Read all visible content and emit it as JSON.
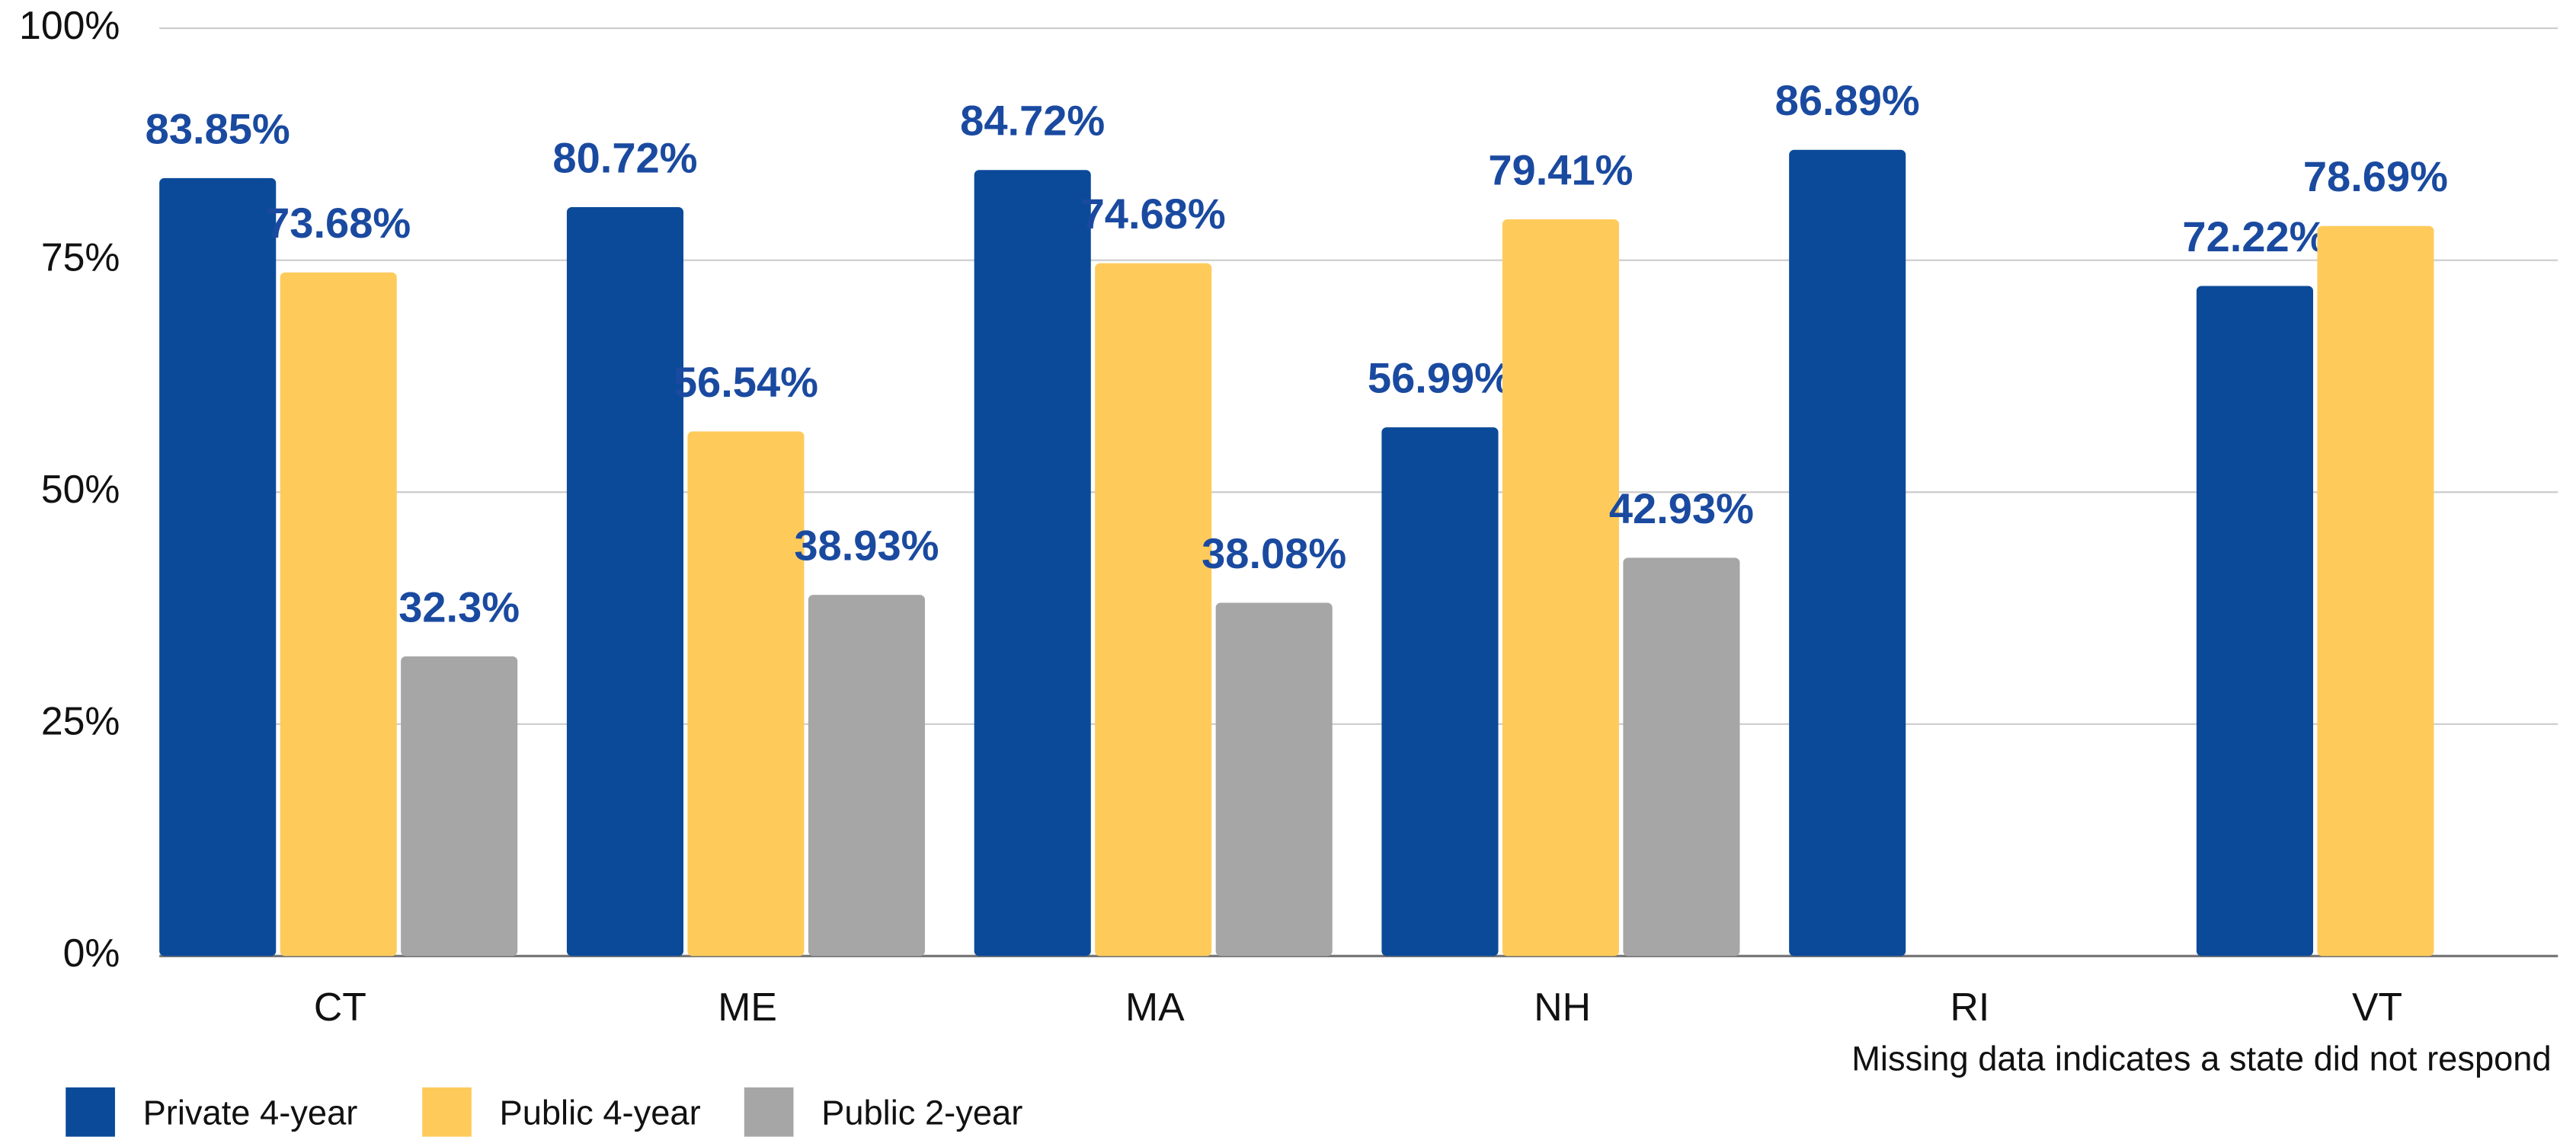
{
  "chart_data": {
    "type": "bar",
    "categories": [
      "CT",
      "ME",
      "MA",
      "NH",
      "RI",
      "VT"
    ],
    "series": [
      {
        "name": "Private 4-year",
        "color": "#0b4a99",
        "values": [
          83.85,
          80.72,
          84.72,
          56.99,
          86.89,
          72.22
        ],
        "value_labels": [
          "83.85%",
          "80.72%",
          "84.72%",
          "56.99%",
          "86.89%",
          "72.22%"
        ]
      },
      {
        "name": "Public 4-year",
        "color": "#fecb5b",
        "values": [
          73.68,
          56.54,
          74.68,
          79.41,
          null,
          78.69
        ],
        "value_labels": [
          "73.68%",
          "56.54%",
          "74.68%",
          "79.41%",
          null,
          "78.69%"
        ]
      },
      {
        "name": "Public 2-year",
        "color": "#a6a6a6",
        "values": [
          32.3,
          38.93,
          38.08,
          42.93,
          null,
          null
        ],
        "value_labels": [
          "32.3%",
          "38.93%",
          "38.08%",
          "42.93%",
          null,
          null
        ]
      }
    ],
    "ylim": [
      0,
      100
    ],
    "yticks": [
      {
        "value": 0,
        "label": "0%"
      },
      {
        "value": 25,
        "label": "25%"
      },
      {
        "value": 50,
        "label": "50%"
      },
      {
        "value": 75,
        "label": "75%"
      },
      {
        "value": 100,
        "label": "100%"
      }
    ],
    "grid": true,
    "legend": "bottom-left",
    "note": "Missing data indicates a state did not respond"
  }
}
